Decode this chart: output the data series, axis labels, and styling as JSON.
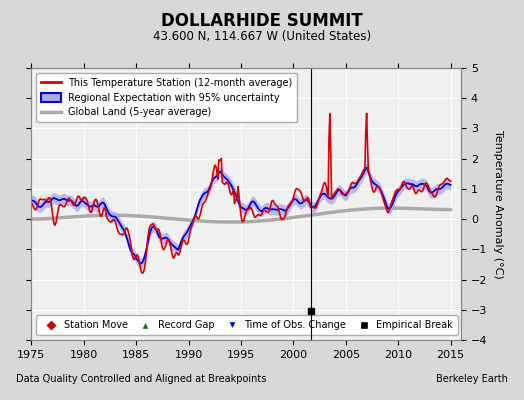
{
  "title": "DOLLARHIDE SUMMIT",
  "subtitle": "43.600 N, 114.667 W (United States)",
  "ylabel": "Temperature Anomaly (°C)",
  "xlabel_left": "Data Quality Controlled and Aligned at Breakpoints",
  "xlabel_right": "Berkeley Earth",
  "ylim": [
    -4,
    5
  ],
  "xlim": [
    1975,
    2016
  ],
  "xticks": [
    1975,
    1980,
    1985,
    1990,
    1995,
    2000,
    2005,
    2010,
    2015
  ],
  "yticks": [
    -4,
    -3,
    -2,
    -1,
    0,
    1,
    2,
    3,
    4,
    5
  ],
  "bg_color": "#d8d8d8",
  "plot_bg_color": "#f0f0f0",
  "grid_color": "#ffffff",
  "station_color": "#dd0000",
  "regional_color": "#0000dd",
  "regional_fill_color": "#aaaaee",
  "global_color": "#aaaaaa",
  "empirical_break_x": 2001.7,
  "empirical_break_y": -3.05,
  "vertical_line_x": 2001.7
}
